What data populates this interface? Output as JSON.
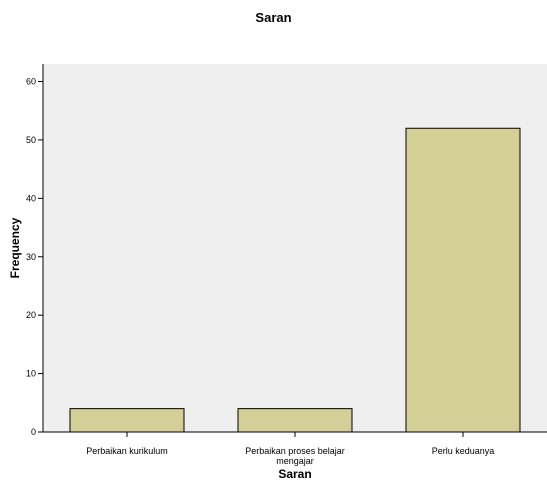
{
  "chart_data": {
    "type": "bar",
    "title": "Saran",
    "xlabel": "Saran",
    "ylabel": "Frequency",
    "categories": [
      "Perbaikan kurikulum",
      "Perbaikan proses belajar mengajar",
      "Perlu keduanya"
    ],
    "category_lines": [
      [
        "Perbaikan kurikulum"
      ],
      [
        "Perbaikan proses belajar",
        "mengajar"
      ],
      [
        "Perlu keduanya"
      ]
    ],
    "values": [
      4,
      4,
      52
    ],
    "ylim": [
      0,
      63
    ],
    "yticks": [
      0,
      10,
      20,
      30,
      40,
      50,
      60
    ],
    "grid": false,
    "legend": "none",
    "colors": {
      "bar_fill": "#d4cf97",
      "bar_stroke": "#000000",
      "plot_background": "#efefef",
      "page_background": "#ffffff"
    }
  }
}
